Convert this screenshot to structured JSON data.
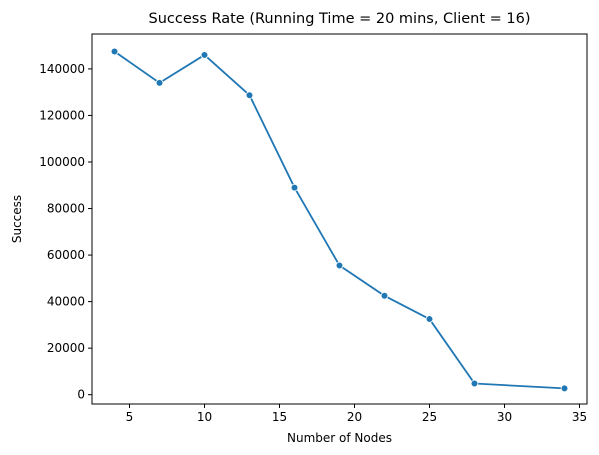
{
  "chart_data": {
    "type": "line",
    "title": "Success Rate (Running Time = 20 mins, Client = 16)",
    "xlabel": "Number of Nodes",
    "ylabel": "Success",
    "x": [
      4,
      7,
      10,
      13,
      16,
      19,
      22,
      25,
      28,
      34
    ],
    "series": [
      {
        "values": [
          147500,
          134000,
          146000,
          128700,
          89000,
          55500,
          42500,
          32500,
          4800,
          2700
        ]
      }
    ],
    "xlim": [
      2.5,
      35.5
    ],
    "ylim": [
      -4000,
      155000
    ],
    "xticks": [
      5,
      10,
      15,
      20,
      25,
      30,
      35
    ],
    "yticks": [
      0,
      20000,
      40000,
      60000,
      80000,
      100000,
      120000,
      140000
    ],
    "grid": false,
    "legend": "none",
    "colors": {
      "line": "#1f77b4",
      "marker": "#1f77b4",
      "marker_edge": "#ffffff",
      "axes": "#000000"
    }
  }
}
